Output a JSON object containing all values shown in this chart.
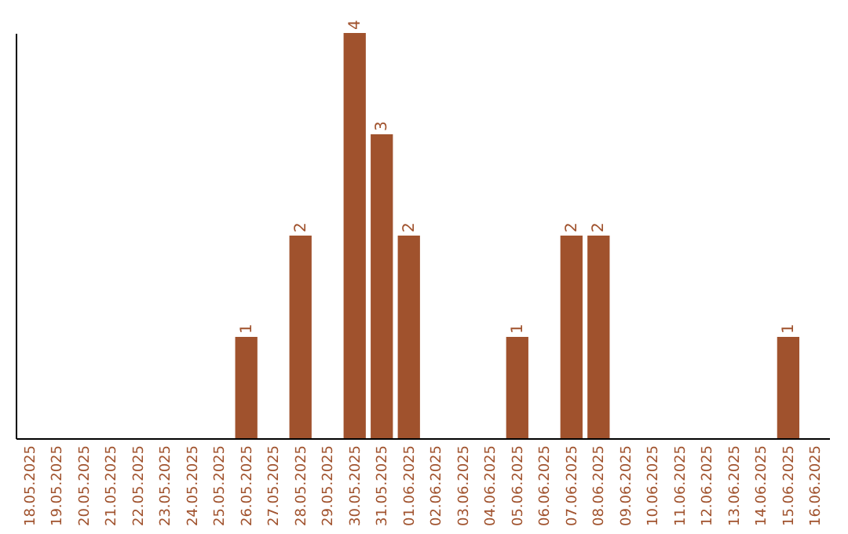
{
  "chart_data": {
    "type": "bar",
    "categories": [
      "18.05.2025",
      "19.05.2025",
      "20.05.2025",
      "21.05.2025",
      "22.05.2025",
      "23.05.2025",
      "24.05.2025",
      "25.05.2025",
      "26.05.2025",
      "27.05.2025",
      "28.05.2025",
      "29.05.2025",
      "30.05.2025",
      "31.05.2025",
      "01.06.2025",
      "02.06.2025",
      "03.06.2025",
      "04.06.2025",
      "05.06.2025",
      "06.06.2025",
      "07.06.2025",
      "08.06.2025",
      "09.06.2025",
      "10.06.2025",
      "11.06.2025",
      "12.06.2025",
      "13.06.2025",
      "14.06.2025",
      "15.06.2025",
      "16.06.2025"
    ],
    "values": [
      0,
      0,
      0,
      0,
      0,
      0,
      0,
      0,
      1,
      0,
      2,
      0,
      4,
      3,
      2,
      0,
      0,
      0,
      1,
      0,
      2,
      2,
      0,
      0,
      0,
      0,
      0,
      0,
      1,
      0
    ],
    "value_labels": [
      null,
      null,
      null,
      null,
      null,
      null,
      null,
      null,
      "1",
      null,
      "2",
      null,
      "4",
      "3",
      "2",
      null,
      null,
      null,
      "1",
      null,
      "2",
      "2",
      null,
      null,
      null,
      null,
      null,
      null,
      "1",
      null
    ],
    "color": "#a0522d",
    "grid": false
  }
}
